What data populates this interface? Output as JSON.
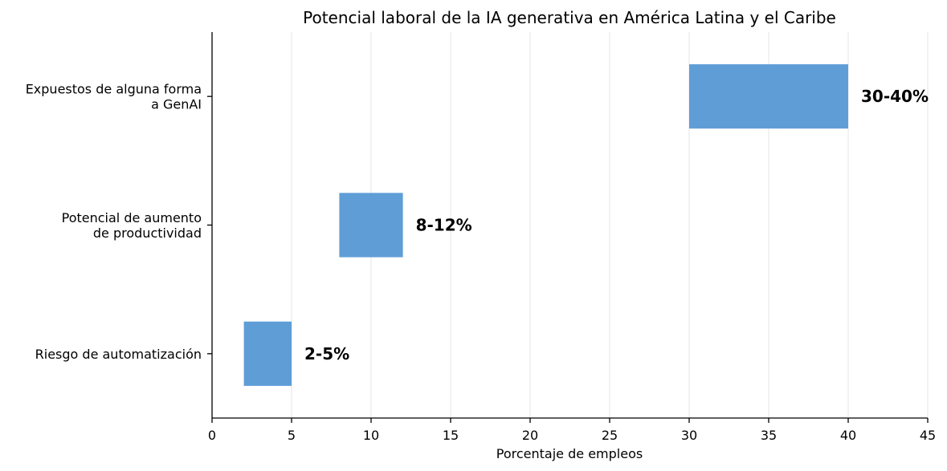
{
  "chart_data": {
    "type": "bar",
    "orientation": "horizontal",
    "title": "Potencial laboral de la IA generativa en América Latina y el Caribe",
    "xlabel": "Porcentaje de empleos",
    "ylabel": "",
    "xlim": [
      0,
      45
    ],
    "xticks": [
      0,
      5,
      10,
      15,
      20,
      25,
      30,
      35,
      40,
      45
    ],
    "grid": "x",
    "bar_color": "#5b9bd5",
    "categories": [
      {
        "lines": [
          "Expuestos de alguna forma",
          "a GenAI"
        ],
        "start": 30,
        "end": 40,
        "label": "30-40%"
      },
      {
        "lines": [
          "Potencial de aumento",
          "de productividad"
        ],
        "start": 8,
        "end": 12,
        "label": "8-12%"
      },
      {
        "lines": [
          "Riesgo de automatización"
        ],
        "start": 2,
        "end": 5,
        "label": "2-5%"
      }
    ]
  }
}
